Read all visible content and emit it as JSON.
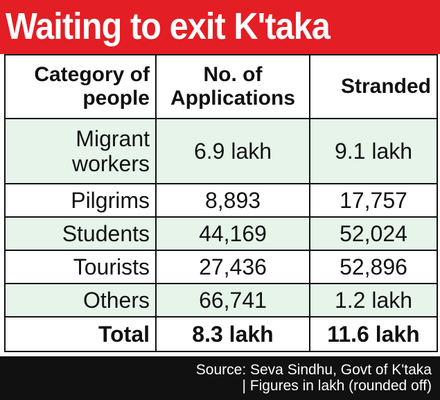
{
  "header": {
    "title": "Waiting to exit K'taka"
  },
  "colors": {
    "banner": "#e31e24",
    "row_tint": "#e6f4ea",
    "footer_bg": "#111111"
  },
  "chart_data": {
    "type": "table",
    "title": "Waiting to exit K'taka",
    "columns": [
      "Category of people",
      "No. of Applications",
      "Stranded"
    ],
    "rows": [
      {
        "category": "Migrant workers",
        "applications": "6.9 lakh",
        "stranded": "9.1 lakh"
      },
      {
        "category": "Pilgrims",
        "applications": "8,893",
        "stranded": "17,757"
      },
      {
        "category": "Students",
        "applications": "44,169",
        "stranded": "52,024"
      },
      {
        "category": "Tourists",
        "applications": "27,436",
        "stranded": "52,896"
      },
      {
        "category": "Others",
        "applications": "66,741",
        "stranded": "1.2 lakh"
      }
    ],
    "total": {
      "label": "Total",
      "applications": "8.3 lakh",
      "stranded": "11.6 lakh"
    }
  },
  "footer": {
    "source_line1": "Source: Seva Sindhu, Govt of K'taka",
    "source_line2": "| Figures in lakh (rounded off)"
  }
}
